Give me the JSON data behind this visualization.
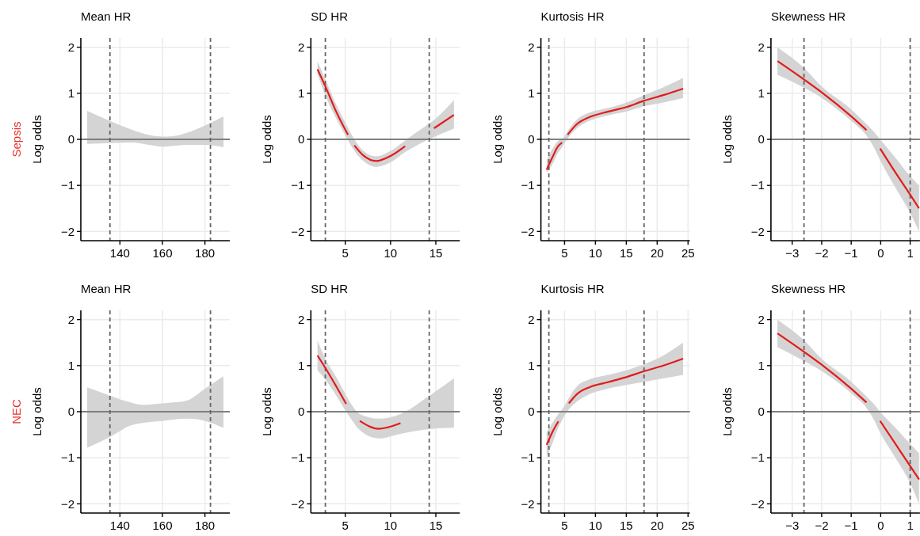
{
  "chart_data": [
    {
      "type": "line",
      "title": "Mean HR",
      "ylabel": "Log odds",
      "annotations": [
        "Sepsis"
      ],
      "x": [
        124.6,
        135.3,
        145,
        150,
        155,
        160,
        165,
        172,
        180,
        188.7
      ],
      "series": [
        {
          "color": "#e31a1c",
          "values": [
            null,
            null,
            null,
            null,
            null,
            null,
            null,
            null,
            null,
            null
          ],
          "upper": [
            0.62,
            0.4,
            0.22,
            0.14,
            0.08,
            0.06,
            0.07,
            0.15,
            0.3,
            0.5
          ],
          "lower": [
            -0.1,
            -0.08,
            -0.07,
            -0.09,
            -0.13,
            -0.16,
            -0.14,
            -0.12,
            -0.12,
            -0.17
          ]
        }
      ],
      "xlim": [
        121.6,
        191.7
      ],
      "xticks": [
        140,
        160,
        180
      ],
      "ylim": [
        -2.2,
        2.2
      ],
      "yticks": [
        -2,
        -1,
        0,
        1,
        2
      ],
      "grid": true,
      "ref_lines": [
        {
          "axis": "y",
          "value": 0,
          "color": "#808080"
        },
        {
          "axis": "x",
          "value": 135.3,
          "line_style": "dashed",
          "color": "#666666"
        },
        {
          "axis": "x",
          "value": 182.6,
          "line_style": "dashed",
          "color": "#666666"
        }
      ]
    },
    {
      "type": "line",
      "title": "SD HR",
      "ylabel": "Log odds",
      "x": [
        1.93,
        2.8,
        4,
        5.3,
        5.65,
        6.0,
        7,
        8.4,
        10,
        11.6,
        13,
        14.8,
        17
      ],
      "series": [
        {
          "color": "#e31a1c",
          "values": [
            1.52,
            1.15,
            0.6,
            0.1,
            null,
            -0.13,
            -0.35,
            -0.47,
            -0.36,
            -0.15,
            null,
            0.24,
            0.53
          ],
          "upper": [
            1.7,
            1.3,
            0.75,
            0.25,
            0.12,
            0.0,
            -0.25,
            -0.37,
            -0.25,
            -0.03,
            0.17,
            0.42,
            0.85
          ],
          "lower": [
            1.42,
            0.95,
            0.45,
            -0.02,
            -0.14,
            -0.25,
            -0.47,
            -0.6,
            -0.5,
            -0.28,
            -0.12,
            0.05,
            0.23
          ]
        }
      ],
      "xlim": [
        1.2,
        17.65
      ],
      "xticks": [
        5,
        10,
        15
      ],
      "ylim": [
        -2.2,
        2.2
      ],
      "yticks": [
        -2,
        -1,
        0,
        1,
        2
      ],
      "grid": true,
      "ref_lines": [
        {
          "axis": "y",
          "value": 0,
          "color": "#808080"
        },
        {
          "axis": "x",
          "value": 2.8,
          "line_style": "dashed",
          "color": "#666666"
        },
        {
          "axis": "x",
          "value": 14.27,
          "line_style": "dashed",
          "color": "#666666"
        }
      ]
    },
    {
      "type": "line",
      "title": "Kurtosis HR",
      "ylabel": "Log odds",
      "x": [
        2.1,
        3,
        4,
        4.6,
        5.05,
        5.5,
        7,
        9,
        12,
        15,
        17.9,
        21,
        24.2
      ],
      "series": [
        {
          "color": "#e31a1c",
          "values": [
            -0.66,
            -0.4,
            -0.14,
            -0.07,
            null,
            0.1,
            0.33,
            0.48,
            0.6,
            0.7,
            0.84,
            0.96,
            1.1
          ],
          "upper": [
            -0.45,
            -0.22,
            -0.03,
            0.0,
            0.08,
            0.18,
            0.43,
            0.58,
            0.68,
            0.8,
            0.96,
            1.13,
            1.33
          ],
          "lower": [
            -0.73,
            -0.55,
            -0.28,
            -0.17,
            -0.07,
            0.02,
            0.24,
            0.4,
            0.52,
            0.6,
            0.72,
            0.8,
            0.9
          ]
        }
      ],
      "xlim": [
        1.17,
        25.3
      ],
      "xticks": [
        5,
        10,
        15,
        20,
        25
      ],
      "ylim": [
        -2.2,
        2.2
      ],
      "yticks": [
        -2,
        -1,
        0,
        1,
        2
      ],
      "grid": true,
      "ref_lines": [
        {
          "axis": "y",
          "value": 0,
          "color": "#808080"
        },
        {
          "axis": "x",
          "value": 2.46,
          "line_style": "dashed",
          "color": "#666666"
        },
        {
          "axis": "x",
          "value": 17.88,
          "line_style": "dashed",
          "color": "#666666"
        }
      ]
    },
    {
      "type": "line",
      "title": "Skewness HR",
      "ylabel": "Log odds",
      "x": [
        -3.5,
        -2.6,
        -2,
        -1,
        -0.48,
        -0.25,
        -0.02,
        0.5,
        1.0,
        1.3
      ],
      "series": [
        {
          "color": "#e31a1c",
          "values": [
            1.7,
            1.3,
            1.02,
            0.5,
            0.2,
            null,
            -0.2,
            -0.72,
            -1.2,
            -1.5
          ],
          "upper": [
            2.0,
            1.55,
            1.15,
            0.65,
            0.33,
            0.18,
            0.0,
            -0.4,
            -0.8,
            -1.0
          ],
          "lower": [
            1.4,
            1.12,
            0.9,
            0.4,
            0.08,
            -0.15,
            -0.45,
            -1.05,
            -1.6,
            -2.0
          ]
        }
      ],
      "xlim": [
        -3.72,
        1.33
      ],
      "xticks": [
        -3,
        -2,
        -1,
        0,
        1
      ],
      "ylim": [
        -2.2,
        2.2
      ],
      "yticks": [
        -2,
        -1,
        0,
        1,
        2
      ],
      "grid": true,
      "ref_lines": [
        {
          "axis": "y",
          "value": 0,
          "color": "#808080"
        },
        {
          "axis": "x",
          "value": -2.6,
          "line_style": "dashed",
          "color": "#666666"
        },
        {
          "axis": "x",
          "value": 1.0,
          "line_style": "dashed",
          "color": "#666666"
        }
      ]
    },
    {
      "type": "line",
      "title": "Mean HR",
      "ylabel": "Log odds",
      "annotations": [
        "NEC"
      ],
      "x": [
        124.6,
        135.3,
        145,
        150,
        155,
        160,
        165,
        172,
        180,
        188.7
      ],
      "series": [
        {
          "color": "#e31a1c",
          "values": [
            null,
            null,
            null,
            null,
            null,
            null,
            null,
            null,
            null,
            null
          ],
          "upper": [
            0.53,
            0.35,
            0.2,
            0.15,
            0.16,
            0.18,
            0.2,
            0.25,
            0.5,
            0.77
          ],
          "lower": [
            -0.78,
            -0.55,
            -0.3,
            -0.25,
            -0.22,
            -0.2,
            -0.17,
            -0.15,
            -0.2,
            -0.35
          ]
        }
      ],
      "xlim": [
        121.6,
        191.7
      ],
      "xticks": [
        140,
        160,
        180
      ],
      "ylim": [
        -2.2,
        2.2
      ],
      "yticks": [
        -2,
        -1,
        0,
        1,
        2
      ],
      "grid": true,
      "ref_lines": [
        {
          "axis": "y",
          "value": 0,
          "color": "#808080"
        },
        {
          "axis": "x",
          "value": 135.3,
          "line_style": "dashed",
          "color": "#666666"
        },
        {
          "axis": "x",
          "value": 182.6,
          "line_style": "dashed",
          "color": "#666666"
        }
      ]
    },
    {
      "type": "line",
      "title": "SD HR",
      "ylabel": "Log odds",
      "x": [
        1.93,
        2.8,
        4,
        5.1,
        5.8,
        6.6,
        8.7,
        11.1,
        14.3,
        17
      ],
      "series": [
        {
          "color": "#e31a1c",
          "values": [
            1.22,
            0.95,
            0.55,
            0.17,
            null,
            -0.2,
            -0.37,
            -0.25,
            null,
            null
          ],
          "upper": [
            1.55,
            1.15,
            0.75,
            0.35,
            0.12,
            -0.05,
            -0.15,
            -0.05,
            0.35,
            0.72
          ],
          "lower": [
            0.9,
            0.7,
            0.35,
            0.0,
            -0.2,
            -0.4,
            -0.58,
            -0.48,
            -0.38,
            -0.35
          ]
        }
      ],
      "xlim": [
        1.2,
        17.65
      ],
      "xticks": [
        5,
        10,
        15
      ],
      "ylim": [
        -2.2,
        2.2
      ],
      "yticks": [
        -2,
        -1,
        0,
        1,
        2
      ],
      "grid": true,
      "ref_lines": [
        {
          "axis": "y",
          "value": 0,
          "color": "#808080"
        },
        {
          "axis": "x",
          "value": 2.8,
          "line_style": "dashed",
          "color": "#666666"
        },
        {
          "axis": "x",
          "value": 14.27,
          "line_style": "dashed",
          "color": "#666666"
        }
      ]
    },
    {
      "type": "line",
      "title": "Kurtosis HR",
      "ylabel": "Log odds",
      "x": [
        2.1,
        3,
        4,
        4.85,
        5.7,
        7,
        9,
        12,
        15,
        17.9,
        21,
        24.2
      ],
      "series": [
        {
          "color": "#e31a1c",
          "values": [
            -0.72,
            -0.45,
            -0.21,
            null,
            0.18,
            0.38,
            0.53,
            0.64,
            0.75,
            0.88,
            1.0,
            1.15
          ],
          "upper": [
            -0.45,
            -0.25,
            -0.05,
            0.1,
            0.3,
            0.55,
            0.7,
            0.8,
            0.9,
            1.03,
            1.22,
            1.5
          ],
          "lower": [
            -1.0,
            -0.7,
            -0.35,
            -0.12,
            0.05,
            0.22,
            0.38,
            0.5,
            0.58,
            0.65,
            0.72,
            0.8
          ]
        }
      ],
      "xlim": [
        1.17,
        25.3
      ],
      "xticks": [
        5,
        10,
        15,
        20,
        25
      ],
      "ylim": [
        -2.2,
        2.2
      ],
      "yticks": [
        -2,
        -1,
        0,
        1,
        2
      ],
      "grid": true,
      "ref_lines": [
        {
          "axis": "y",
          "value": 0,
          "color": "#808080"
        },
        {
          "axis": "x",
          "value": 2.46,
          "line_style": "dashed",
          "color": "#666666"
        },
        {
          "axis": "x",
          "value": 17.88,
          "line_style": "dashed",
          "color": "#666666"
        }
      ]
    },
    {
      "type": "line",
      "title": "Skewness HR",
      "ylabel": "Log odds",
      "x": [
        -3.5,
        -2.6,
        -2,
        -1,
        -0.48,
        -0.25,
        -0.02,
        0.5,
        1.0,
        1.3
      ],
      "series": [
        {
          "color": "#e31a1c",
          "values": [
            1.7,
            1.3,
            1.02,
            0.5,
            0.2,
            null,
            -0.2,
            -0.7,
            -1.18,
            -1.47
          ],
          "upper": [
            2.0,
            1.55,
            1.15,
            0.65,
            0.33,
            0.18,
            0.0,
            -0.35,
            -0.7,
            -0.9
          ],
          "lower": [
            1.4,
            1.1,
            0.88,
            0.4,
            0.08,
            -0.15,
            -0.45,
            -1.0,
            -1.55,
            -2.0
          ]
        }
      ],
      "xlim": [
        -3.72,
        1.33
      ],
      "xticks": [
        -3,
        -2,
        -1,
        0,
        1
      ],
      "ylim": [
        -2.2,
        2.2
      ],
      "yticks": [
        -2,
        -1,
        0,
        1,
        2
      ],
      "grid": true,
      "ref_lines": [
        {
          "axis": "y",
          "value": 0,
          "color": "#808080"
        },
        {
          "axis": "x",
          "value": -2.6,
          "line_style": "dashed",
          "color": "#666666"
        },
        {
          "axis": "x",
          "value": 1.0,
          "line_style": "dashed",
          "color": "#666666"
        }
      ]
    }
  ]
}
